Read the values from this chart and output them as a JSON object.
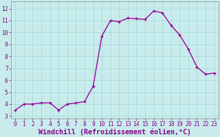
{
  "x": [
    0,
    1,
    2,
    3,
    4,
    5,
    6,
    7,
    8,
    9,
    10,
    11,
    12,
    13,
    14,
    15,
    16,
    17,
    18,
    19,
    20,
    21,
    22,
    23
  ],
  "y": [
    3.5,
    4.0,
    4.0,
    4.1,
    4.1,
    3.5,
    4.0,
    4.1,
    4.2,
    5.5,
    9.7,
    11.0,
    10.9,
    11.2,
    11.15,
    11.1,
    11.8,
    11.65,
    10.6,
    9.8,
    8.6,
    7.1,
    6.5,
    6.6
  ],
  "line_color": "#990099",
  "marker_color": "#990099",
  "bg_color": "#c8ecec",
  "grid_color": "#a8d8d8",
  "xlabel": "Windchill (Refroidissement éolien,°C)",
  "label_color": "#880088",
  "xlim": [
    -0.5,
    23.5
  ],
  "ylim": [
    2.8,
    12.6
  ],
  "yticks": [
    3,
    4,
    5,
    6,
    7,
    8,
    9,
    10,
    11,
    12
  ],
  "xticks": [
    0,
    1,
    2,
    3,
    4,
    5,
    6,
    7,
    8,
    9,
    10,
    11,
    12,
    13,
    14,
    15,
    16,
    17,
    18,
    19,
    20,
    21,
    22,
    23
  ],
  "tick_label_fontsize": 5.8,
  "xlabel_fontsize": 7.2,
  "line_width": 1.0,
  "marker_size": 3.5
}
